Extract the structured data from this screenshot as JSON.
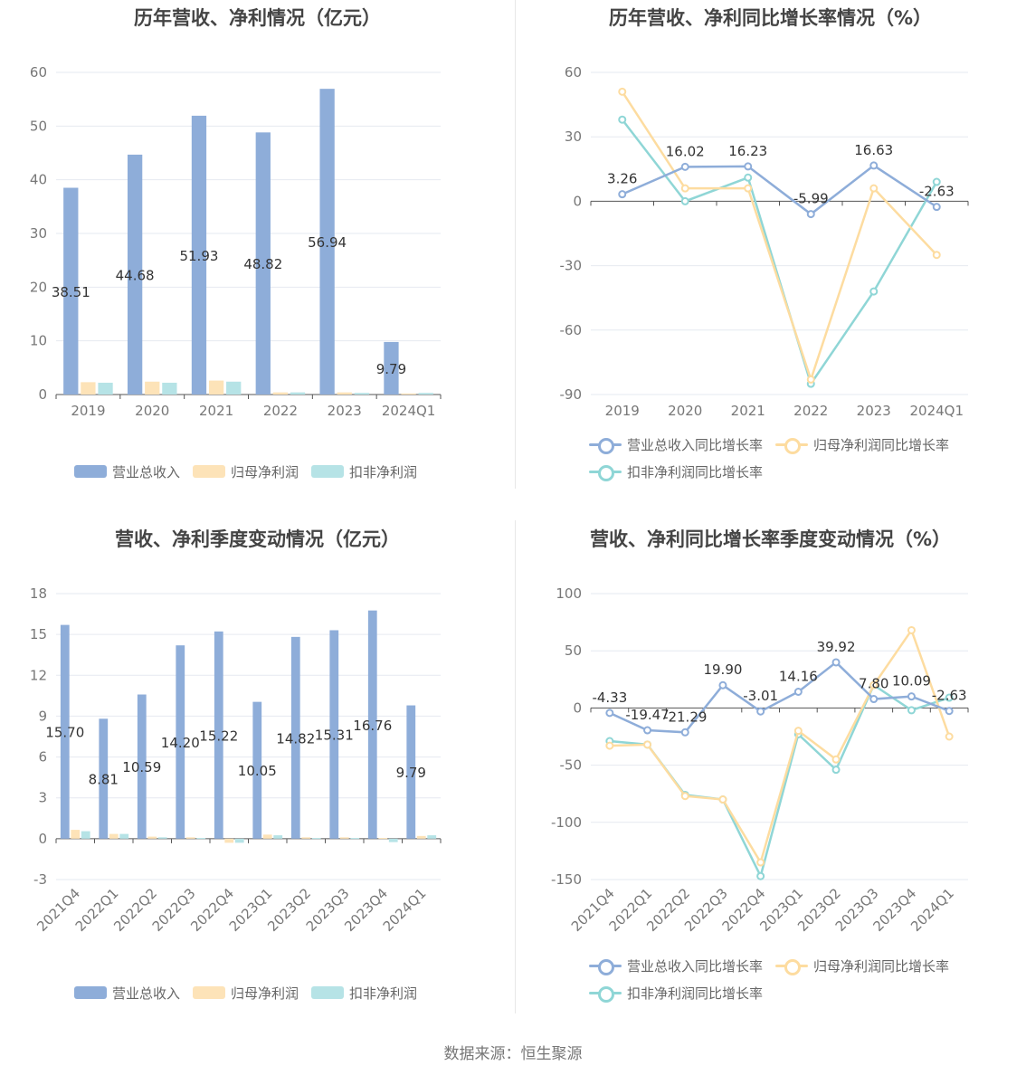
{
  "footer": "数据来源：恒生聚源",
  "colors": {
    "revenue": "#8eadd9",
    "netprofit": "#fde3b8",
    "deducted": "#b6e3e6",
    "rev_line": "#8eadd9",
    "np_line": "#fddca0",
    "dd_line": "#8fd6d6"
  },
  "legend": {
    "bar": [
      "营业总收入",
      "归母净利润",
      "扣非净利润"
    ],
    "line": [
      "营业总收入同比增长率",
      "归母净利润同比增长率",
      "扣非净利润同比增长率"
    ]
  },
  "chart_data": [
    {
      "id": "annual-amount",
      "type": "bar",
      "title": "历年营收、净利情况（亿元）",
      "categories": [
        "2019",
        "2020",
        "2021",
        "2022",
        "2023",
        "2024Q1"
      ],
      "ylim": [
        0,
        60
      ],
      "yticks": [
        0,
        10,
        20,
        30,
        40,
        50,
        60
      ],
      "series": [
        {
          "name": "营业总收入",
          "values": [
            38.51,
            44.68,
            51.93,
            48.82,
            56.94,
            9.79
          ],
          "labels": [
            "38.51",
            "44.68",
            "51.93",
            "48.82",
            "56.94",
            "9.79"
          ]
        },
        {
          "name": "归母净利润",
          "values": [
            2.3,
            2.4,
            2.6,
            0.4,
            0.4,
            0.2
          ]
        },
        {
          "name": "扣非净利润",
          "values": [
            2.2,
            2.2,
            2.4,
            0.4,
            0.3,
            0.3
          ]
        }
      ]
    },
    {
      "id": "annual-growth",
      "type": "line",
      "title": "历年营收、净利同比增长率情况（%）",
      "categories": [
        "2019",
        "2020",
        "2021",
        "2022",
        "2023",
        "2024Q1"
      ],
      "ylim": [
        -90,
        60
      ],
      "yticks": [
        -90,
        -60,
        -30,
        0,
        30,
        60
      ],
      "series": [
        {
          "name": "营业总收入同比增长率",
          "values": [
            3.26,
            16.02,
            16.23,
            -5.99,
            16.63,
            -2.63
          ],
          "labels": [
            "3.26",
            "16.02",
            "16.23",
            "-5.99",
            "16.63",
            "-2.63"
          ]
        },
        {
          "name": "归母净利润同比增长率",
          "values": [
            51,
            6,
            6,
            -83,
            6,
            -25
          ]
        },
        {
          "name": "扣非净利润同比增长率",
          "values": [
            38,
            0,
            11,
            -85,
            -42,
            9
          ]
        }
      ]
    },
    {
      "id": "quarterly-amount",
      "type": "bar",
      "title": "营收、净利季度变动情况（亿元）",
      "categories": [
        "2021Q4",
        "2022Q1",
        "2022Q2",
        "2022Q3",
        "2022Q4",
        "2023Q1",
        "2023Q2",
        "2023Q3",
        "2023Q4",
        "2024Q1"
      ],
      "ylim": [
        -3,
        18
      ],
      "yticks": [
        -3,
        0,
        3,
        6,
        9,
        12,
        15,
        18
      ],
      "series": [
        {
          "name": "营业总收入",
          "values": [
            15.7,
            8.81,
            10.59,
            14.2,
            15.22,
            10.05,
            14.82,
            15.31,
            16.76,
            9.79
          ],
          "labels": [
            "15.70",
            "8.81",
            "10.59",
            "14.20",
            "15.22",
            "10.05",
            "14.82",
            "15.31",
            "16.76",
            "9.79"
          ]
        },
        {
          "name": "归母净利润",
          "values": [
            0.65,
            0.35,
            0.15,
            0.1,
            -0.3,
            0.3,
            0.1,
            0.1,
            0.05,
            0.2
          ]
        },
        {
          "name": "扣非净利润",
          "values": [
            0.55,
            0.35,
            0.1,
            0.05,
            -0.3,
            0.25,
            0.05,
            0.05,
            -0.25,
            0.25
          ]
        }
      ]
    },
    {
      "id": "quarterly-growth",
      "type": "line",
      "title": "营收、净利同比增长率季度变动情况（%）",
      "categories": [
        "2021Q4",
        "2022Q1",
        "2022Q2",
        "2022Q3",
        "2022Q4",
        "2023Q1",
        "2023Q2",
        "2023Q3",
        "2023Q4",
        "2024Q1"
      ],
      "ylim": [
        -150,
        100
      ],
      "yticks": [
        -150,
        -100,
        -50,
        0,
        50,
        100
      ],
      "series": [
        {
          "name": "营业总收入同比增长率",
          "values": [
            -4.33,
            -19.47,
            -21.29,
            19.9,
            -3.01,
            14.16,
            39.92,
            7.8,
            10.09,
            -2.63
          ],
          "labels": [
            "-4.33",
            "-19.47",
            "-21.29",
            "19.90",
            "-3.01",
            "14.16",
            "39.92",
            "7.80",
            "10.09",
            "-2.63"
          ]
        },
        {
          "name": "归母净利润同比增长率",
          "values": [
            -33,
            -32,
            -77,
            -80,
            -135,
            -20,
            -45,
            20,
            68,
            -25
          ]
        },
        {
          "name": "扣非净利润同比增长率",
          "values": [
            -29,
            -32,
            -76,
            -80,
            -147,
            -23,
            -54,
            20,
            -2,
            9
          ]
        }
      ]
    }
  ]
}
